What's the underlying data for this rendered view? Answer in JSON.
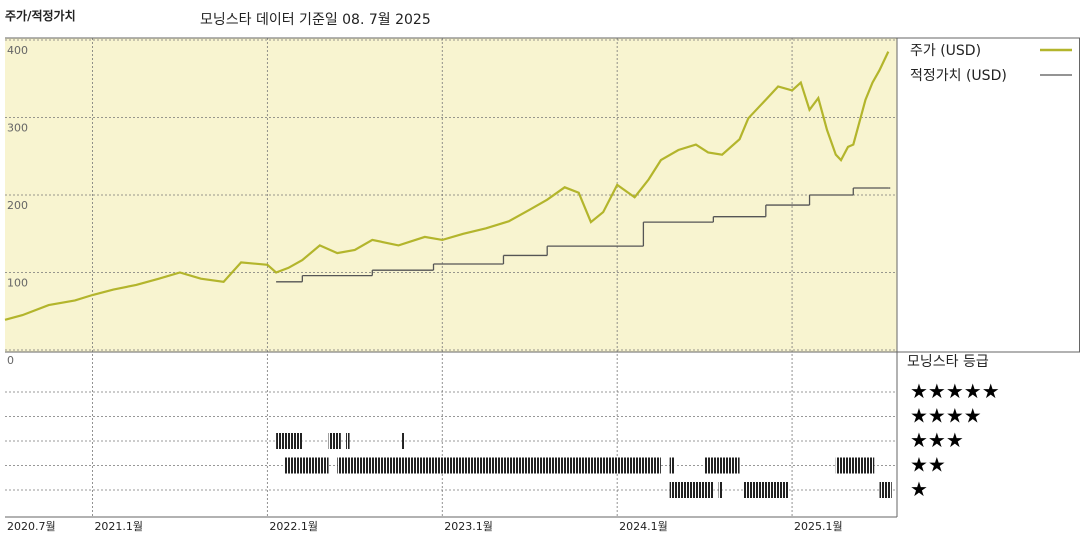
{
  "chart_data": [
    {
      "type": "line",
      "title": "주가/적정가치",
      "subtitle": "모닝스타 데이터 기준일 08. 7월 2025",
      "xlim": [
        2020.5,
        2025.6
      ],
      "ylim": [
        0,
        400
      ],
      "yticks": [
        0,
        100,
        200,
        300,
        400
      ],
      "xticks": [
        {
          "value": 2020.5,
          "label": "2020.7월"
        },
        {
          "value": 2021,
          "label": "2021.1월"
        },
        {
          "value": 2022,
          "label": "2022.1월"
        },
        {
          "value": 2023,
          "label": "2023.1월"
        },
        {
          "value": 2024,
          "label": "2024.1월"
        },
        {
          "value": 2025,
          "label": "2025.1월"
        }
      ],
      "grid": true,
      "background": "#f8f4d0",
      "series": [
        {
          "name": "주가 (USD)",
          "color": "#b3b52c",
          "style": "line",
          "x": [
            2020.5,
            2020.6,
            2020.75,
            2020.9,
            2021.0,
            2021.12,
            2021.25,
            2021.38,
            2021.5,
            2021.62,
            2021.75,
            2021.85,
            2022.0,
            2022.05,
            2022.12,
            2022.2,
            2022.3,
            2022.4,
            2022.5,
            2022.6,
            2022.75,
            2022.9,
            2023.0,
            2023.12,
            2023.25,
            2023.38,
            2023.5,
            2023.6,
            2023.7,
            2023.78,
            2023.85,
            2023.92,
            2024.0,
            2024.1,
            2024.18,
            2024.25,
            2024.35,
            2024.45,
            2024.52,
            2024.6,
            2024.7,
            2024.75,
            2024.85,
            2024.92,
            2025.0,
            2025.05,
            2025.1,
            2025.15,
            2025.2,
            2025.25,
            2025.28,
            2025.32,
            2025.35,
            2025.42,
            2025.46,
            2025.5,
            2025.55
          ],
          "values": [
            39,
            45,
            58,
            64,
            71,
            78,
            84,
            92,
            100,
            92,
            88,
            113,
            110,
            100,
            106,
            116,
            135,
            125,
            129,
            142,
            135,
            146,
            142,
            150,
            157,
            166,
            181,
            194,
            210,
            203,
            165,
            178,
            213,
            197,
            220,
            245,
            258,
            265,
            255,
            252,
            272,
            299,
            323,
            340,
            335,
            345,
            310,
            325,
            284,
            252,
            245,
            262,
            265,
            323,
            345,
            361,
            385
          ]
        },
        {
          "name": "적정가치 (USD)",
          "color": "#555555",
          "style": "step",
          "x": [
            2022.05,
            2022.2,
            2022.6,
            2022.95,
            2023.35,
            2023.6,
            2024.15,
            2024.55,
            2024.85,
            2025.1,
            2025.35,
            2025.55
          ],
          "values": [
            88,
            96,
            103,
            111,
            122,
            134,
            165,
            172,
            187,
            200,
            209,
            209
          ]
        }
      ]
    },
    {
      "type": "rating",
      "title": "모닝스타 등급",
      "color": "#222222",
      "rows": [
        "★★★★★",
        "★★★★",
        "★★★",
        "★★",
        "★"
      ],
      "periods": [
        {
          "start": 2022.05,
          "end": 2022.2,
          "stars": 3
        },
        {
          "start": 2022.35,
          "end": 2022.42,
          "stars": 3
        },
        {
          "start": 2022.45,
          "end": 2022.47,
          "stars": 3
        },
        {
          "start": 2022.77,
          "end": 2022.785,
          "stars": 3
        },
        {
          "start": 2022.1,
          "end": 2022.35,
          "stars": 2
        },
        {
          "start": 2022.4,
          "end": 2024.25,
          "stars": 2
        },
        {
          "start": 2024.3,
          "end": 2024.33,
          "stars": 2
        },
        {
          "start": 2024.5,
          "end": 2024.7,
          "stars": 2
        },
        {
          "start": 2025.25,
          "end": 2025.47,
          "stars": 2
        },
        {
          "start": 2024.3,
          "end": 2024.55,
          "stars": 1
        },
        {
          "start": 2024.58,
          "end": 2024.6,
          "stars": 1
        },
        {
          "start": 2024.72,
          "end": 2024.98,
          "stars": 1
        },
        {
          "start": 2025.5,
          "end": 2025.57,
          "stars": 1
        }
      ]
    }
  ]
}
